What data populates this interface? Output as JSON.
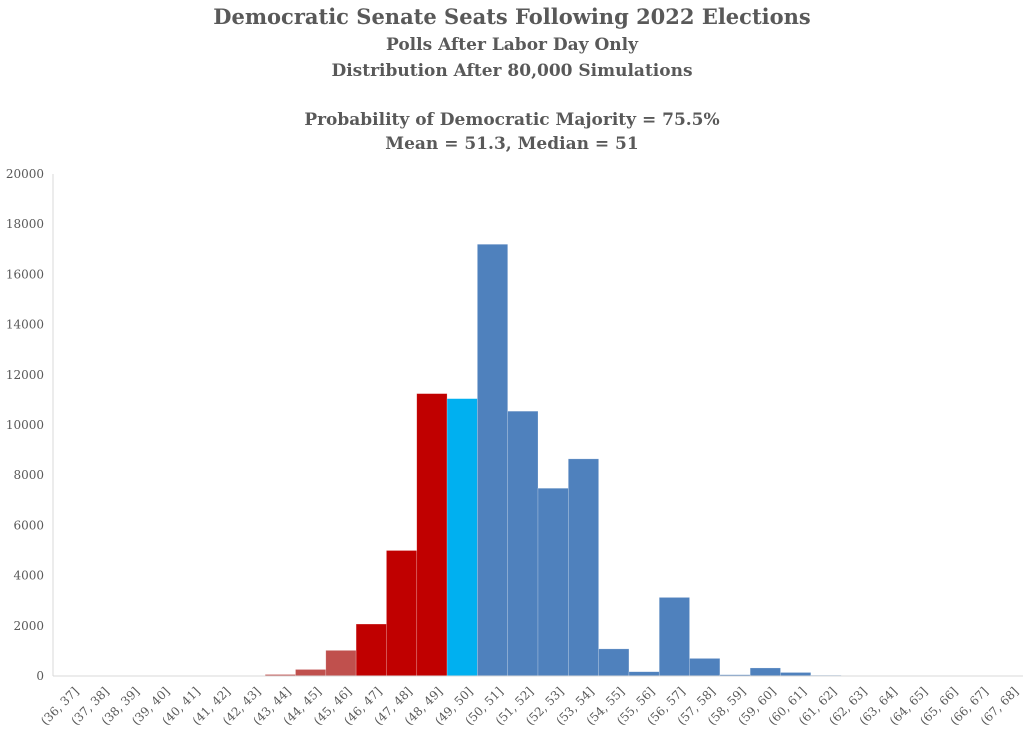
{
  "chart_data": {
    "type": "bar",
    "title": "Democratic Senate Seats Following 2022 Elections",
    "subtitle_lines": [
      "Polls After Labor Day Only",
      "Distribution After 80,000 Simulations"
    ],
    "stats_lines": [
      "Probability of Democratic Majority = 75.5%",
      "Mean = 51.3, Median = 51"
    ],
    "xlabel": "",
    "ylabel": "",
    "ylim": [
      0,
      20000
    ],
    "yticks": [
      0,
      2000,
      4000,
      6000,
      8000,
      10000,
      12000,
      14000,
      16000,
      18000,
      20000
    ],
    "grid": false,
    "categories": [
      "(36, 37]",
      "(37, 38]",
      "(38, 39]",
      "(39, 40]",
      "(40, 41]",
      "(41, 42]",
      "(42, 43]",
      "(43, 44]",
      "(44, 45]",
      "(45, 46]",
      "(46, 47]",
      "(47, 48]",
      "(48, 49]",
      "(49, 50]",
      "(50, 51]",
      "(51, 52]",
      "(52, 53]",
      "(53, 54]",
      "(54, 55]",
      "(55, 56]",
      "(56, 57]",
      "(57, 58]",
      "(58, 59]",
      "(59, 60]",
      "(60, 61]",
      "(61, 62]",
      "(62, 63]",
      "(63, 64]",
      "(64, 65]",
      "(65, 66]",
      "(66, 67]",
      "(67, 68]"
    ],
    "values": [
      0,
      0,
      0,
      0,
      0,
      0,
      0,
      60,
      260,
      1020,
      2070,
      5000,
      11250,
      11050,
      17200,
      10550,
      7480,
      8650,
      1080,
      170,
      3130,
      700,
      50,
      320,
      140,
      30,
      10,
      5,
      0,
      0,
      0,
      0
    ],
    "bar_colors": [
      "#c0504d",
      "#c0504d",
      "#c0504d",
      "#c0504d",
      "#c0504d",
      "#c0504d",
      "#c0504d",
      "#c0504d",
      "#c0504d",
      "#c0504d",
      "#c00000",
      "#c00000",
      "#c00000",
      "#00b0f0",
      "#4f81bd",
      "#4f81bd",
      "#4f81bd",
      "#4f81bd",
      "#4f81bd",
      "#4f81bd",
      "#4f81bd",
      "#4f81bd",
      "#4f81bd",
      "#4f81bd",
      "#4f81bd",
      "#4f81bd",
      "#4f81bd",
      "#4f81bd",
      "#4f81bd",
      "#4f81bd",
      "#4f81bd",
      "#4f81bd"
    ],
    "axis_color": "#d9d9d9",
    "text_color": "#595959"
  }
}
